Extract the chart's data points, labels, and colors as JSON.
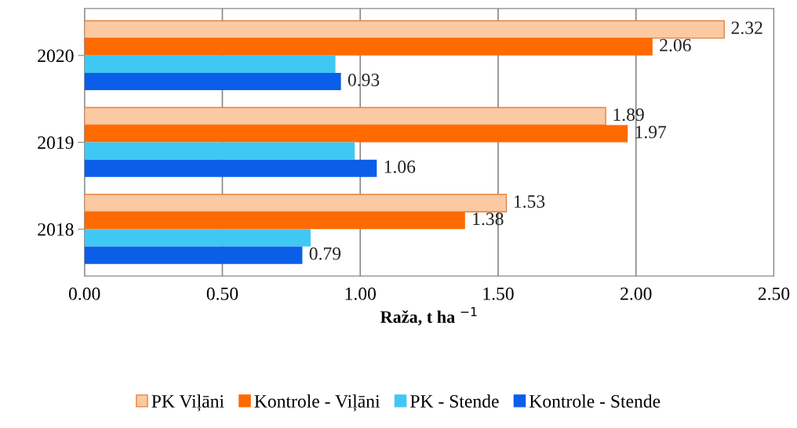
{
  "chart_data": {
    "type": "bar",
    "orientation": "horizontal",
    "xlabel": "Raža, t ha $^{−1}$",
    "categories": [
      "2020",
      "2019",
      "2018"
    ],
    "series": [
      {
        "name": "PK Viļāni",
        "color": "#fbc9a2",
        "values": [
          2.32,
          1.89,
          1.53
        ],
        "value_labels": [
          "2.32",
          "1.89",
          "1.53"
        ]
      },
      {
        "name": "Kontrole - Viļāni",
        "color": "#ff6a00",
        "values": [
          2.06,
          1.97,
          1.38
        ],
        "value_labels": [
          "2.06",
          "1.97",
          "1.38"
        ]
      },
      {
        "name": "PK - Stende",
        "color": "#40c8f4",
        "values": [
          0.91,
          0.98,
          0.82
        ],
        "value_labels": [
          null,
          null,
          null
        ]
      },
      {
        "name": "Kontrole - Stende",
        "color": "#0a5ee8",
        "values": [
          0.93,
          1.06,
          0.79
        ],
        "value_labels": [
          "0.93",
          "1.06",
          "0.79"
        ]
      }
    ],
    "xlim": [
      0,
      2.5
    ],
    "xticks": [
      {
        "value": 0,
        "label": "0.00"
      },
      {
        "value": 0.5,
        "label": "0.50"
      },
      {
        "value": 1,
        "label": "1.00"
      },
      {
        "value": 1.5,
        "label": "1.50"
      },
      {
        "value": 2,
        "label": "2.00"
      },
      {
        "value": 2.5,
        "label": "2.50"
      }
    ],
    "grid": "x",
    "legend": "bottom"
  }
}
